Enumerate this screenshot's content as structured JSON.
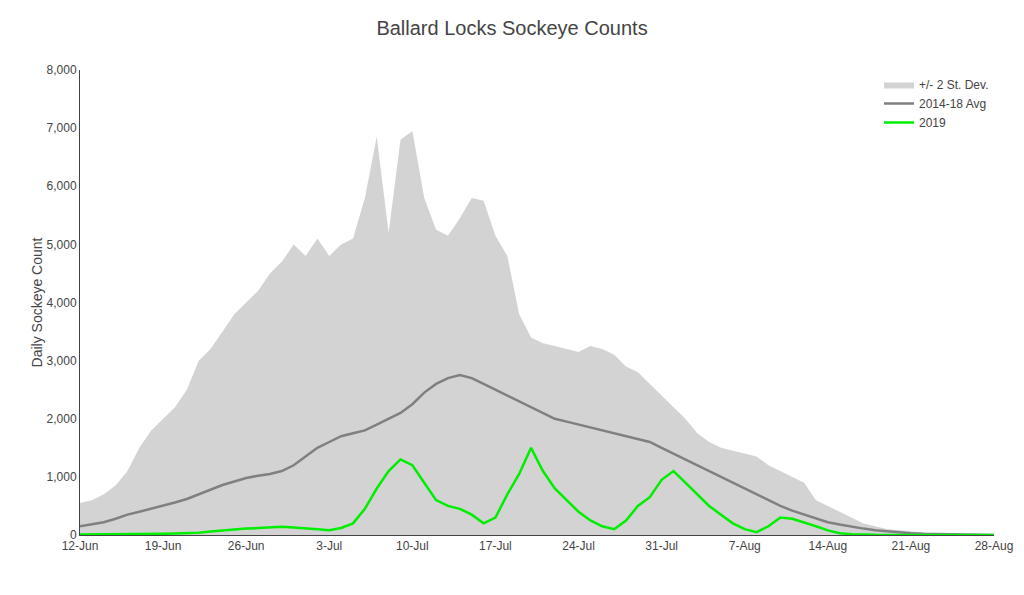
{
  "chart_data": {
    "type": "line",
    "title": "Ballard Locks Sockeye Counts",
    "ylabel": "Daily Sockeye Count",
    "categories": [
      "12-Jun",
      null,
      null,
      null,
      null,
      null,
      null,
      "19-Jun",
      null,
      null,
      null,
      null,
      null,
      null,
      "26-Jun",
      null,
      null,
      null,
      null,
      null,
      null,
      "3-Jul",
      null,
      null,
      null,
      null,
      null,
      null,
      "10-Jul",
      null,
      null,
      null,
      null,
      null,
      null,
      "17-Jul",
      null,
      null,
      null,
      null,
      null,
      null,
      "24-Jul",
      null,
      null,
      null,
      null,
      null,
      null,
      "31-Jul",
      null,
      null,
      null,
      null,
      null,
      null,
      "7-Aug",
      null,
      null,
      null,
      null,
      null,
      null,
      "14-Aug",
      null,
      null,
      null,
      null,
      null,
      null,
      "21-Aug",
      null,
      null,
      null,
      null,
      null,
      null,
      "28-Aug"
    ],
    "series": [
      {
        "name": "+/- 2 St. Dev.",
        "type": "band",
        "color": "#d3d3d3",
        "lower": [
          0,
          0,
          0,
          0,
          0,
          0,
          0,
          0,
          0,
          0,
          0,
          0,
          0,
          0,
          0,
          0,
          0,
          0,
          0,
          0,
          0,
          0,
          0,
          0,
          0,
          0,
          0,
          0,
          0,
          0,
          0,
          0,
          0,
          0,
          0,
          0,
          0,
          0,
          0,
          0,
          0,
          0,
          0,
          0,
          0,
          0,
          0,
          0,
          0,
          0,
          0,
          0,
          0,
          0,
          0,
          0,
          0,
          0,
          0,
          0,
          0,
          0,
          0,
          0,
          0,
          0,
          0,
          0,
          0,
          0,
          0,
          0,
          0,
          0,
          0,
          0,
          0,
          0
        ],
        "upper": [
          550,
          600,
          700,
          850,
          1100,
          1500,
          1800,
          2000,
          2200,
          2500,
          3000,
          3200,
          3500,
          3800,
          4000,
          4200,
          4500,
          4700,
          5000,
          4800,
          5100,
          4800,
          5000,
          5100,
          5800,
          6850,
          5200,
          6800,
          6950,
          5800,
          5250,
          5150,
          5450,
          5800,
          5750,
          5150,
          4800,
          3800,
          3400,
          3300,
          3250,
          3200,
          3150,
          3250,
          3200,
          3100,
          2900,
          2800,
          2600,
          2400,
          2200,
          2000,
          1750,
          1600,
          1500,
          1450,
          1400,
          1350,
          1200,
          1100,
          1000,
          900,
          600,
          500,
          400,
          300,
          200,
          150,
          100,
          80,
          60,
          40,
          25,
          15,
          8,
          5,
          3,
          2
        ]
      },
      {
        "name": "2014-18 Avg",
        "type": "line",
        "color": "#808080",
        "values": [
          150,
          180,
          220,
          280,
          350,
          400,
          450,
          500,
          560,
          620,
          700,
          780,
          860,
          920,
          980,
          1020,
          1050,
          1100,
          1200,
          1350,
          1500,
          1600,
          1700,
          1750,
          1800,
          1900,
          2000,
          2100,
          2250,
          2450,
          2600,
          2700,
          2750,
          2700,
          2600,
          2500,
          2400,
          2300,
          2200,
          2100,
          2000,
          1950,
          1900,
          1850,
          1800,
          1750,
          1700,
          1650,
          1600,
          1500,
          1400,
          1300,
          1200,
          1100,
          1000,
          900,
          800,
          700,
          600,
          500,
          420,
          350,
          280,
          220,
          180,
          140,
          110,
          80,
          60,
          45,
          30,
          20,
          15,
          10,
          7,
          5,
          3,
          2
        ]
      },
      {
        "name": "2019",
        "type": "line",
        "color": "#00ee00",
        "values": [
          10,
          10,
          10,
          10,
          15,
          20,
          20,
          20,
          25,
          30,
          40,
          60,
          80,
          100,
          110,
          120,
          130,
          140,
          130,
          120,
          100,
          80,
          120,
          200,
          450,
          800,
          1100,
          1300,
          1200,
          900,
          600,
          500,
          450,
          350,
          200,
          300,
          700,
          1050,
          1500,
          1100,
          800,
          600,
          400,
          250,
          150,
          100,
          250,
          500,
          650,
          950,
          1100,
          900,
          700,
          500,
          350,
          200,
          100,
          50,
          150,
          300,
          280,
          220,
          150,
          80,
          30,
          15,
          5,
          3,
          2,
          1,
          1,
          0,
          0,
          0,
          0,
          0,
          0,
          0
        ]
      }
    ],
    "ylim": [
      0,
      8000
    ],
    "yticks": [
      0,
      {
        "value": 1000,
        "label": "1,000"
      },
      {
        "value": 2000,
        "label": "2,000"
      },
      {
        "value": 3000,
        "label": "3,000"
      },
      {
        "value": 4000,
        "label": "4,000"
      },
      {
        "value": 5000,
        "label": "5,000"
      },
      {
        "value": 6000,
        "label": "6,000"
      },
      {
        "value": 7000,
        "label": "7,000"
      },
      {
        "value": 8000,
        "label": "8,000"
      }
    ],
    "grid": false,
    "legend": "upper right"
  }
}
